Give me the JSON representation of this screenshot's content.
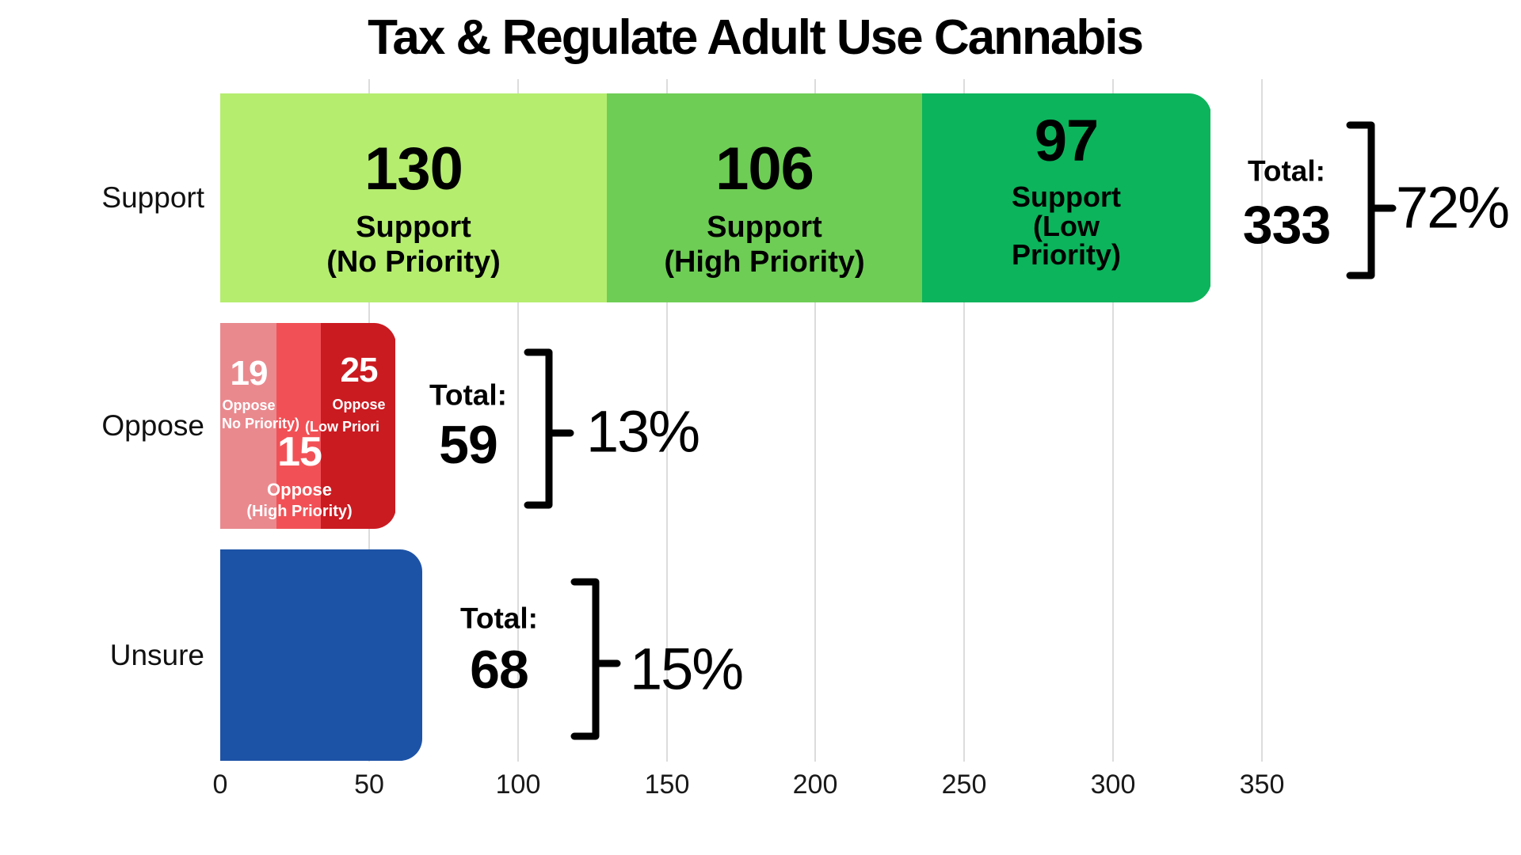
{
  "chart_data": {
    "type": "bar",
    "orientation": "horizontal",
    "stacked": true,
    "title": "Tax & Regulate Adult Use Cannabis",
    "xlabel": "",
    "ylabel": "",
    "xlim": [
      0,
      350
    ],
    "x_ticks": [
      "0",
      "50",
      "100",
      "150",
      "200",
      "250",
      "300",
      "350"
    ],
    "grid": "vertical-light-gray",
    "legend": "none (labels inside segments)",
    "categories": [
      "Support",
      "Oppose",
      "Unsure"
    ],
    "rows": [
      {
        "category": "Support",
        "total_label": "Total:",
        "total": 333,
        "total_display": "333",
        "percent_display": "72%",
        "segments": [
          {
            "name": "Support (No Priority)",
            "value": 130,
            "value_display": "130",
            "caption_lines": [
              "Support",
              "(No Priority)"
            ],
            "color": "#b5ed6f",
            "text_color": "#000000"
          },
          {
            "name": "Support (High Priority)",
            "value": 106,
            "value_display": "106",
            "caption_lines": [
              "Support",
              "(High Priority)"
            ],
            "color": "#6ecd55",
            "text_color": "#000000"
          },
          {
            "name": "Support (Low Priority)",
            "value": 97,
            "value_display": "97",
            "caption_lines": [
              "Support",
              "(Low",
              "Priority)"
            ],
            "color": "#0cb45c",
            "text_color": "#000000"
          }
        ]
      },
      {
        "category": "Oppose",
        "total_label": "Total:",
        "total": 59,
        "total_display": "59",
        "percent_display": "13%",
        "segments": [
          {
            "name": "Oppose (No Priority)",
            "value": 19,
            "value_display": "19",
            "caption_lines": [
              "Oppose",
              "No Priority)"
            ],
            "color": "#e9898e",
            "text_color": "#ffffff"
          },
          {
            "name": "Oppose (High Priority)",
            "value": 15,
            "value_display": "15",
            "caption_lines": [
              "Oppose",
              "(High Priority)"
            ],
            "color": "#f15156",
            "text_color": "#ffffff"
          },
          {
            "name": "Oppose (Low Priority)",
            "value": 25,
            "value_display": "25",
            "caption_lines": [
              "Oppose",
              "(Low Priori"
            ],
            "color": "#ca1b21",
            "text_color": "#ffffff"
          }
        ]
      },
      {
        "category": "Unsure",
        "total_label": "Total:",
        "total": 68,
        "total_display": "68",
        "percent_display": "15%",
        "segments": [
          {
            "name": "Unsure",
            "value": 68,
            "value_display": "",
            "caption_lines": [],
            "color": "#1d53a6",
            "text_color": "#ffffff"
          }
        ]
      }
    ]
  },
  "colors": {
    "background": "#ffffff",
    "gridline": "#dcdcdc",
    "bracket": "#000000",
    "title_text": "#000000",
    "axis_text": "#191919",
    "category_text": "#111111"
  }
}
